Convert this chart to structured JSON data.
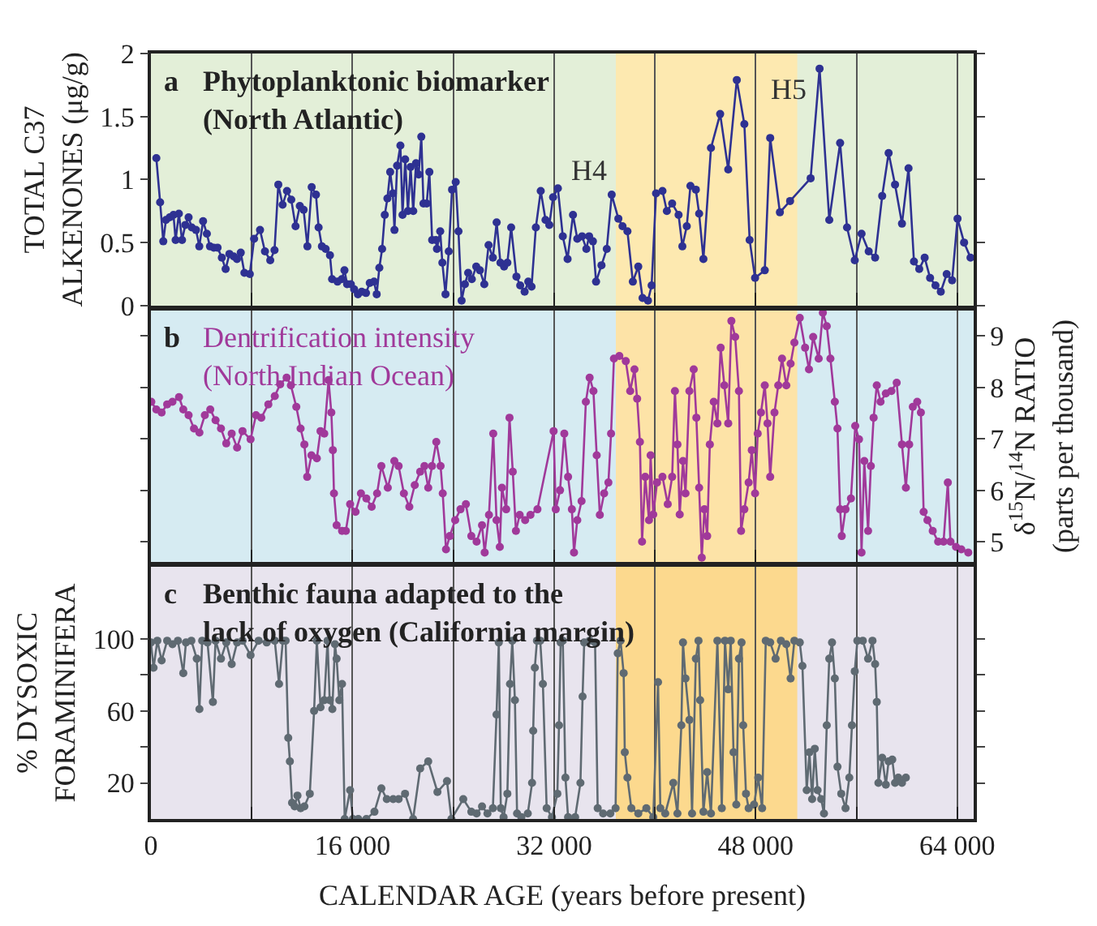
{
  "chart_data": [
    {
      "type": "line",
      "title": "Phytoplanktonic biomarker\n(North Atlantic)",
      "ylabel": "TOTAL C37\nALKENONES (μg/g)",
      "annotations": [
        "a",
        "H4",
        "H5"
      ],
      "x": [
        430,
        730,
        980,
        1190,
        1490,
        1790,
        1960,
        2220,
        2470,
        2730,
        2990,
        3240,
        3580,
        3840,
        4140,
        4440,
        4690,
        4990,
        5290,
        5630,
        5930,
        6230,
        6570,
        6830,
        7130,
        7420,
        7850,
        8190,
        8660,
        9050,
        9470,
        9810,
        10110,
        10450,
        10800,
        11140,
        11480,
        11820,
        12120,
        12420,
        12760,
        13100,
        13310,
        13570,
        13870,
        14210,
        14380,
        14810,
        15150,
        15360,
        15570,
        15870,
        16130,
        16430,
        16730,
        17070,
        17370,
        17710,
        17920,
        18130,
        18350,
        18560,
        18770,
        18990,
        19200,
        19330,
        19540,
        19800,
        19970,
        20180,
        20400,
        20610,
        20820,
        21040,
        21250,
        21460,
        21630,
        21890,
        22100,
        22320,
        22620,
        22700,
        22960,
        23130,
        23380,
        23640,
        23900,
        24190,
        24410,
        24660,
        24920,
        25180,
        25470,
        25820,
        26110,
        26460,
        26800,
        27140,
        27440,
        27740,
        28030,
        28290,
        28590,
        29010,
        29310,
        29660,
        29950,
        30210,
        30550,
        30940,
        31320,
        31620,
        31920,
        32300,
        32690,
        33070,
        33500,
        33840,
        34220,
        34560,
        34780,
        35080,
        35330,
        35760,
        36180,
        36570,
        37100,
        37430,
        37820,
        38250,
        38680,
        39020,
        39450,
        39740,
        40090,
        40600,
        40950,
        41370,
        41880,
        42180,
        42530,
        42820,
        43250,
        43510,
        43850,
        44450,
        45180,
        45820,
        46500,
        47100,
        47520,
        47950,
        48720,
        49150,
        49920,
        50730,
        52360,
        53070,
        53840,
        54700,
        55250,
        55860,
        56400,
        56970,
        57480,
        58040,
        58550,
        59060,
        59610,
        60130,
        60560,
        60980,
        61410,
        61840,
        62270,
        62690,
        63160,
        63590,
        64020,
        64540,
        65050
      ],
      "series": [
        {
          "color": "#2e3192",
          "values": [
            1.17,
            0.82,
            0.51,
            0.68,
            0.7,
            0.72,
            0.52,
            0.73,
            0.52,
            0.64,
            0.7,
            0.62,
            0.6,
            0.47,
            0.67,
            0.57,
            0.47,
            0.46,
            0.46,
            0.38,
            0.29,
            0.41,
            0.39,
            0.37,
            0.42,
            0.26,
            0.25,
            0.53,
            0.6,
            0.43,
            0.36,
            0.44,
            0.96,
            0.8,
            0.91,
            0.84,
            0.63,
            0.79,
            0.76,
            0.47,
            0.94,
            0.88,
            0.62,
            0.47,
            0.45,
            0.4,
            0.21,
            0.19,
            0.21,
            0.28,
            0.17,
            0.17,
            0.13,
            0.09,
            0.11,
            0.1,
            0.18,
            0.19,
            0.09,
            0.3,
            0.45,
            0.72,
            0.85,
            1.06,
            0.89,
            0.6,
            1.11,
            1.27,
            0.72,
            1.16,
            0.75,
            1.1,
            0.75,
            1.13,
            1.04,
            1.34,
            0.81,
            0.81,
            1.06,
            0.52,
            0.52,
            0.45,
            0.59,
            0.34,
            0.09,
            0.43,
            0.92,
            0.98,
            0.59,
            0.04,
            0.17,
            0.26,
            0.21,
            0.31,
            0.28,
            0.17,
            0.48,
            0.38,
            0.66,
            0.34,
            0.31,
            0.34,
            0.62,
            0.23,
            0.16,
            0.11,
            0.19,
            0.15,
            0.62,
            0.91,
            0.68,
            0.64,
            0.86,
            0.93,
            0.55,
            0.37,
            0.72,
            0.53,
            0.55,
            0.45,
            0.55,
            0.51,
            0.19,
            0.32,
            0.45,
            0.88,
            0.69,
            0.63,
            0.59,
            0.19,
            0.31,
            0.06,
            0.04,
            0.16,
            0.89,
            0.91,
            0.75,
            0.81,
            0.72,
            0.47,
            0.63,
            0.95,
            0.92,
            0.73,
            0.37,
            1.25,
            1.52,
            1.08,
            1.79,
            1.44,
            0.52,
            0.22,
            0.28,
            1.33,
            0.74,
            0.83,
            1.01,
            1.88,
            0.68,
            1.29,
            0.62,
            0.36,
            0.57,
            0.43,
            0.38,
            0.87,
            1.21,
            0.96,
            0.65,
            1.09,
            0.35,
            0.29,
            0.38,
            0.22,
            0.16,
            0.11,
            0.25,
            0.2,
            0.69,
            0.5,
            0.38
          ]
        }
      ],
      "xlim": [
        0,
        65300
      ],
      "ylim": [
        0,
        2
      ],
      "yticks": [
        0,
        0.5,
        1,
        1.5,
        2
      ],
      "grid": "x",
      "marker": "circle",
      "tick_labels": "y",
      "bands": [
        {
          "axis": "x",
          "from": 36900,
          "to": 51300,
          "color": "#fde9b0"
        }
      ]
    },
    {
      "type": "line",
      "title": "Dentrification intensity\n(North Indian Ocean)",
      "y2label": "δ$^{15}$N/$^{14}$N RATIO\n(parts per thousand)",
      "annotations": [
        "b"
      ],
      "x": [
        30,
        430,
        850,
        1290,
        1710,
        2230,
        2570,
        2990,
        3420,
        3850,
        4280,
        4710,
        5130,
        5560,
        5980,
        6410,
        6840,
        7270,
        7910,
        8340,
        8760,
        9320,
        9830,
        10260,
        10770,
        11110,
        11540,
        11880,
        12180,
        12400,
        12740,
        13170,
        13460,
        13760,
        14100,
        14320,
        14440,
        14530,
        14740,
        15170,
        15470,
        15810,
        16240,
        16670,
        17100,
        17520,
        17950,
        18290,
        18800,
        19320,
        19660,
        20080,
        20510,
        20940,
        21370,
        21710,
        22010,
        22310,
        22650,
        22990,
        23160,
        23420,
        23720,
        24150,
        24570,
        25000,
        25430,
        25850,
        26280,
        26490,
        26830,
        27170,
        27430,
        27690,
        27860,
        28200,
        28460,
        28720,
        28970,
        29270,
        29700,
        30120,
        30680,
        31960,
        32130,
        32470,
        32810,
        33110,
        33410,
        33580,
        33840,
        34180,
        34520,
        34820,
        35120,
        35380,
        35630,
        35970,
        36310,
        36520,
        36750,
        37180,
        37690,
        38040,
        38380,
        38590,
        38810,
        38980,
        39230,
        39530,
        39660,
        39870,
        40170,
        40600,
        41020,
        41370,
        41590,
        41790,
        41970,
        42230,
        42430,
        42740,
        43080,
        43290,
        43510,
        43720,
        43930,
        44150,
        44360,
        44670,
        44960,
        45220,
        45510,
        45820,
        46070,
        46370,
        46670,
        46840,
        47100,
        47440,
        47690,
        47950,
        48160,
        48420,
        48720,
        48940,
        49150,
        49490,
        49790,
        50090,
        50430,
        50770,
        51070,
        51500,
        51920,
        52230,
        52560,
        53000,
        53330,
        53640,
        53930,
        54280,
        54490,
        54700,
        54830,
        55130,
        55560,
        55900,
        56200,
        56400,
        56620,
        56920,
        57140,
        57360,
        57610,
        57910,
        58330,
        58770,
        59190,
        59610,
        59920,
        60180,
        60470,
        60820,
        61110,
        61330,
        61630,
        62050,
        62480,
        62910,
        63250,
        63460,
        63900,
        64320,
        64870
      ],
      "series": [
        {
          "color": "#a0399a",
          "axis": "y2",
          "values": [
            7.72,
            7.57,
            7.51,
            7.67,
            7.72,
            7.81,
            7.57,
            7.46,
            7.2,
            7.12,
            7.46,
            7.57,
            7.36,
            7.2,
            6.91,
            7.1,
            6.83,
            7.15,
            6.99,
            7.46,
            7.41,
            7.67,
            7.83,
            8.06,
            8.19,
            8.04,
            7.62,
            7.2,
            6.89,
            6.26,
            6.68,
            6.62,
            7.15,
            7.1,
            8.14,
            7.51,
            6.78,
            5.94,
            5.32,
            5.21,
            5.21,
            5.73,
            5.58,
            5.94,
            5.84,
            5.68,
            5.94,
            6.47,
            6.05,
            6.57,
            6.47,
            5.94,
            5.68,
            6.1,
            6.36,
            6.47,
            6.05,
            6.47,
            6.94,
            6.47,
            5.94,
            4.85,
            5.11,
            5.42,
            5.63,
            5.73,
            5.11,
            5.0,
            5.32,
            4.79,
            5.52,
            7.1,
            5.42,
            4.9,
            6.05,
            5.63,
            7.41,
            6.36,
            5.21,
            5.52,
            5.42,
            5.52,
            5.63,
            7.15,
            5.63,
            6.0,
            7.1,
            6.26,
            5.63,
            4.79,
            5.42,
            5.79,
            7.72,
            8.19,
            7.93,
            6.68,
            5.52,
            5.94,
            6.15,
            7.1,
            8.56,
            8.61,
            8.51,
            7.93,
            8.35,
            7.78,
            6.94,
            5.0,
            6.26,
            5.42,
            6.68,
            5.53,
            6.15,
            6.26,
            5.73,
            6.26,
            7.93,
            6.89,
            5.53,
            6.57,
            5.94,
            7.93,
            8.35,
            7.41,
            6.05,
            4.69,
            5.63,
            5.11,
            6.89,
            7.72,
            7.3,
            8.77,
            8.04,
            7.3,
            9.29,
            8.98,
            7.93,
            5.21,
            5.63,
            6.15,
            6.78,
            5.94,
            7.1,
            7.51,
            8.04,
            7.3,
            6.26,
            7.51,
            8.04,
            8.56,
            8.04,
            8.46,
            8.87,
            9.35,
            8.77,
            8.35,
            8.98,
            8.56,
            9.45,
            9.19,
            8.56,
            7.72,
            7.2,
            5.63,
            5.11,
            5.63,
            5.84,
            7.25,
            6.99,
            4.79,
            6.57,
            5.21,
            6.47,
            7.41,
            8.04,
            7.72,
            7.88,
            7.93,
            8.09,
            6.89,
            6.05,
            6.89,
            7.62,
            7.72,
            7.51,
            5.58,
            5.42,
            5.21,
            5.0,
            5.0,
            6.15,
            5.0,
            4.9,
            4.85,
            4.79
          ]
        }
      ],
      "xlim": [
        0,
        65300
      ],
      "y2lim": [
        4.6,
        9.5
      ],
      "y2ticks": [
        5,
        6,
        7,
        8,
        9
      ],
      "grid": "x",
      "marker": "circle",
      "tick_labels": "y",
      "bands": [
        {
          "axis": "x",
          "from": 36900,
          "to": 51300,
          "color": "#fde3a7"
        }
      ]
    },
    {
      "type": "line",
      "title": "Benthic fauna adapted to the\nlack of oxygen (California margin)",
      "ylabel": "% DYSOXIC\nFORAMINIFERA",
      "xlabel": "CALENDAR AGE (years before present)",
      "annotations": [
        "c"
      ],
      "x": [
        0,
        210,
        510,
        850,
        1290,
        1710,
        2140,
        2570,
        2780,
        3210,
        3640,
        3850,
        4070,
        4490,
        4920,
        5130,
        5560,
        5980,
        6410,
        6840,
        7270,
        7910,
        8550,
        9190,
        9830,
        10170,
        10470,
        10690,
        10900,
        11030,
        11200,
        11410,
        11630,
        11880,
        12180,
        12610,
        12950,
        13170,
        13460,
        13760,
        14020,
        14190,
        14400,
        14610,
        14740,
        14950,
        15170,
        15380,
        15810,
        16030,
        16460,
        17100,
        17740,
        18290,
        18720,
        19230,
        19660,
        20170,
        20810,
        21370,
        22010,
        22740,
        23500,
        23850,
        24790,
        25430,
        25850,
        26280,
        26710,
        27140,
        27430,
        27610,
        27770,
        27990,
        28290,
        28500,
        28680,
        28890,
        29060,
        29400,
        29910,
        30250,
        30340,
        30470,
        30640,
        30900,
        31110,
        31410,
        31830,
        32260,
        32390,
        32520,
        32690,
        32900,
        33110,
        33670,
        34090,
        34260,
        34390,
        34820,
        35250,
        35460,
        35890,
        36460,
        36880,
        37050,
        37270,
        37520,
        37610,
        37820,
        38130,
        38680,
        39320,
        39870,
        40250,
        40430,
        40820,
        41460,
        41790,
        42100,
        42230,
        42430,
        42740,
        42950,
        43250,
        43460,
        43590,
        43850,
        44150,
        44450,
        44960,
        45310,
        45560,
        45820,
        46020,
        46240,
        46460,
        46670,
        46880,
        47010,
        47230,
        47440,
        47870,
        48200,
        48510,
        48800,
        49150,
        49580,
        50000,
        50430,
        50770,
        51070,
        51500,
        51710,
        52050,
        52270,
        52480,
        52690,
        52910,
        53200,
        53420,
        53640,
        53840,
        54060,
        54280,
        54490,
        54790,
        55130,
        55430,
        55640,
        55860,
        56070,
        56500,
        56920,
        57270,
        57480,
        57610,
        57740,
        58040,
        58330,
        58550,
        58840,
        59060,
        59320,
        59610,
        59920
      ],
      "series": [
        {
          "color": "#5f6a72",
          "values": [
            98,
            84,
            99,
            88,
            99,
            97,
            99,
            81,
            98,
            99,
            89,
            61,
            99,
            98,
            65,
            99,
            89,
            98,
            86,
            98,
            99,
            91,
            99,
            98,
            99,
            75,
            99,
            99,
            45,
            32,
            9,
            7,
            13,
            6,
            7,
            14,
            60,
            99,
            62,
            66,
            99,
            66,
            61,
            97,
            89,
            66,
            75,
            0,
            16,
            0,
            0,
            0,
            4,
            17,
            11,
            11,
            11,
            14,
            0,
            28,
            32,
            15,
            21,
            0,
            11,
            4,
            3,
            7,
            3,
            6,
            58,
            98,
            6,
            1,
            14,
            75,
            99,
            66,
            3,
            1,
            3,
            20,
            49,
            84,
            99,
            99,
            75,
            6,
            1,
            14,
            52,
            98,
            99,
            23,
            1,
            1,
            20,
            68,
            98,
            99,
            98,
            6,
            3,
            3,
            6,
            92,
            99,
            81,
            37,
            23,
            6,
            3,
            6,
            1,
            76,
            6,
            3,
            20,
            3,
            52,
            98,
            78,
            55,
            3,
            89,
            99,
            66,
            4,
            26,
            3,
            99,
            6,
            99,
            72,
            99,
            37,
            8,
            89,
            98,
            52,
            14,
            6,
            8,
            23,
            6,
            99,
            98,
            89,
            99,
            97,
            78,
            99,
            98,
            85,
            16,
            37,
            11,
            39,
            16,
            11,
            3,
            52,
            89,
            98,
            78,
            29,
            14,
            6,
            23,
            52,
            82,
            99,
            99,
            89,
            99,
            86,
            65,
            20,
            34,
            19,
            32,
            33,
            20,
            23,
            20,
            23
          ]
        }
      ],
      "xlim": [
        0,
        65300
      ],
      "xticks": [
        0,
        {
          "value": 8000,
          "label": null
        },
        {
          "value": 16000,
          "label": "16 000"
        },
        {
          "value": 24000,
          "label": null
        },
        {
          "value": 32000,
          "label": "32 000"
        },
        {
          "value": 40000,
          "label": null
        },
        {
          "value": 48000,
          "label": "48 000"
        },
        {
          "value": 56000,
          "label": null
        },
        {
          "value": 64000,
          "label": "64 000"
        }
      ],
      "ylim": [
        0,
        140
      ],
      "yticks": [
        20,
        {
          "value": 40,
          "label": null
        },
        60,
        {
          "value": 80,
          "label": null
        },
        100
      ],
      "grid": "x",
      "marker": "circle",
      "bands": [
        {
          "axis": "x",
          "from": 36900,
          "to": 51300,
          "color": "#fcd98e"
        }
      ]
    }
  ]
}
